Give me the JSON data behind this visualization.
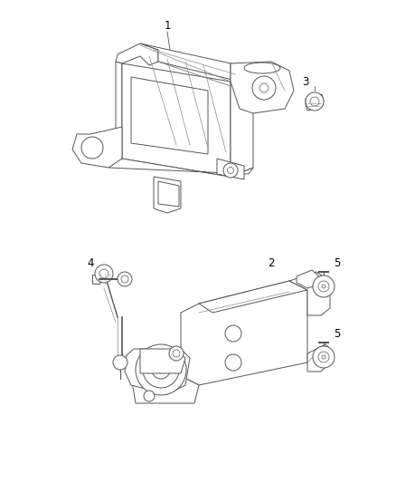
{
  "bg_color": "#ffffff",
  "lc": "#555555",
  "lc2": "#888888",
  "fig_width": 4.38,
  "fig_height": 5.33,
  "dpi": 100,
  "label_fontsize": 8.5
}
